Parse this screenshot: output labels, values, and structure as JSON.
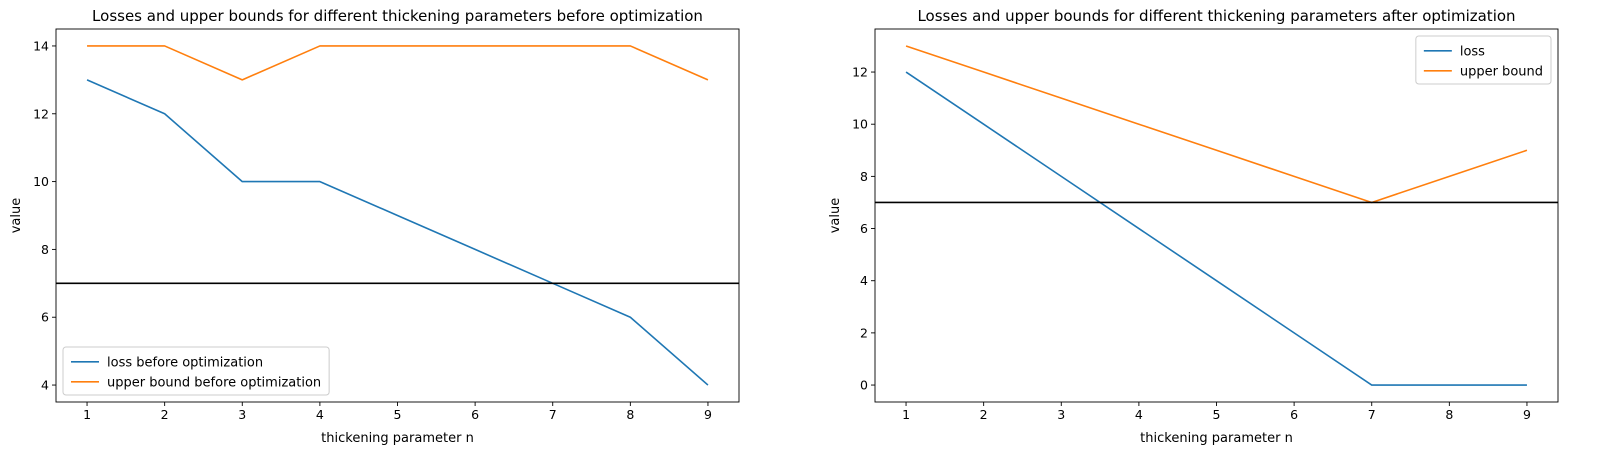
{
  "chart_data": [
    {
      "type": "line",
      "title": "Losses and upper bounds for different thickening parameters before optimization",
      "xlabel": "thickening parameter n",
      "ylabel": "value",
      "x": [
        1,
        2,
        3,
        4,
        5,
        6,
        7,
        8,
        9
      ],
      "xlim": [
        0.6,
        9.4
      ],
      "ylim": [
        3.5,
        14.5
      ],
      "xticks": [
        1,
        2,
        3,
        4,
        5,
        6,
        7,
        8,
        9
      ],
      "yticks": [
        4,
        6,
        8,
        10,
        12,
        14
      ],
      "grid": false,
      "legend_position": "lower-left",
      "hline": {
        "y": 7,
        "color": "#000000"
      },
      "series": [
        {
          "name": "loss before optimization",
          "color": "#1f77b4",
          "values": [
            13,
            12,
            10,
            10,
            9,
            8,
            7,
            6,
            4
          ]
        },
        {
          "name": "upper bound before optimization",
          "color": "#ff7f0e",
          "values": [
            14,
            14,
            13,
            14,
            14,
            14,
            14,
            14,
            13
          ]
        }
      ]
    },
    {
      "type": "line",
      "title": "Losses and upper bounds for different thickening parameters after optimization",
      "xlabel": "thickening parameter n",
      "ylabel": "value",
      "x": [
        1,
        2,
        3,
        4,
        5,
        6,
        7,
        8,
        9
      ],
      "xlim": [
        0.6,
        9.4
      ],
      "ylim": [
        -0.65,
        13.65
      ],
      "xticks": [
        1,
        2,
        3,
        4,
        5,
        6,
        7,
        8,
        9
      ],
      "yticks": [
        0,
        2,
        4,
        6,
        8,
        10,
        12
      ],
      "grid": false,
      "legend_position": "upper-right",
      "hline": {
        "y": 7,
        "color": "#000000"
      },
      "series": [
        {
          "name": "loss",
          "color": "#1f77b4",
          "values": [
            12,
            10,
            8,
            6,
            4,
            2,
            0,
            0,
            0
          ]
        },
        {
          "name": "upper bound",
          "color": "#ff7f0e",
          "values": [
            13,
            12,
            11,
            10,
            9,
            8,
            7,
            8,
            9
          ]
        }
      ]
    }
  ]
}
